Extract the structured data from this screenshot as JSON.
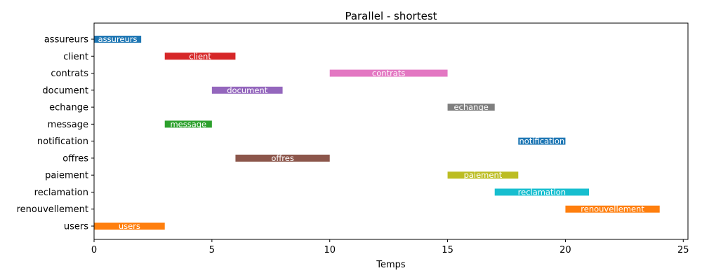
{
  "chart_data": {
    "type": "bar",
    "orientation": "horizontal-gantt",
    "title": "Parallel - shortest",
    "xlabel": "Temps",
    "ylabel": "",
    "xlim": [
      0,
      25.2
    ],
    "x_ticks": [
      0,
      5,
      10,
      15,
      20,
      25
    ],
    "categories": [
      "assureurs",
      "client",
      "contrats",
      "document",
      "echange",
      "message",
      "notification",
      "offres",
      "paiement",
      "reclamation",
      "renouvellement",
      "users"
    ],
    "tasks": [
      {
        "name": "assureurs",
        "start": 0,
        "end": 2,
        "label": "assureurs",
        "color": "#1f77b4"
      },
      {
        "name": "client",
        "start": 3,
        "end": 6,
        "label": "client",
        "color": "#d62728"
      },
      {
        "name": "contrats",
        "start": 10,
        "end": 15,
        "label": "contrats",
        "color": "#e377c2"
      },
      {
        "name": "document",
        "start": 5,
        "end": 8,
        "label": "document",
        "color": "#9467bd"
      },
      {
        "name": "echange",
        "start": 15,
        "end": 17,
        "label": "echange",
        "color": "#7f7f7f"
      },
      {
        "name": "message",
        "start": 3,
        "end": 5,
        "label": "message",
        "color": "#2ca02c"
      },
      {
        "name": "notification",
        "start": 18,
        "end": 20,
        "label": "notification",
        "color": "#1f77b4"
      },
      {
        "name": "offres",
        "start": 6,
        "end": 10,
        "label": "offres",
        "color": "#8c564b"
      },
      {
        "name": "paiement",
        "start": 15,
        "end": 18,
        "label": "paiement",
        "color": "#bcbd22"
      },
      {
        "name": "reclamation",
        "start": 17,
        "end": 21,
        "label": "reclamation",
        "color": "#17becf"
      },
      {
        "name": "renouvellement",
        "start": 20,
        "end": 24,
        "label": "renouvellement",
        "color": "#ff7f0e"
      },
      {
        "name": "users",
        "start": 0,
        "end": 3,
        "label": "users",
        "color": "#ff7f0e"
      }
    ],
    "grid": false,
    "legend": "none"
  }
}
